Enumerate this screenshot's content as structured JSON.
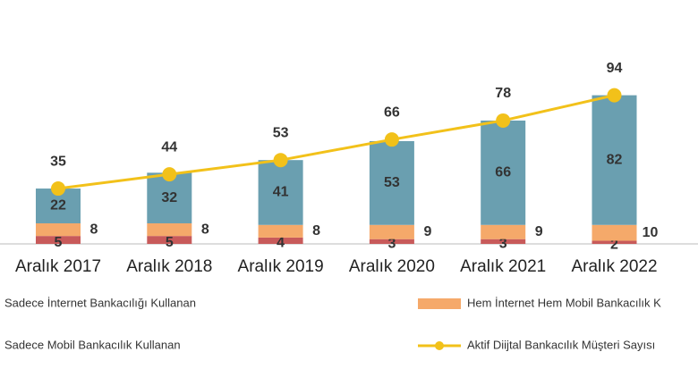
{
  "chart_data": {
    "type": "stacked-bar-line",
    "categories": [
      "Aralık 2017",
      "Aralık 2018",
      "Aralık 2019",
      "Aralık 2020",
      "Aralık 2021",
      "Aralık 2022"
    ],
    "series": [
      {
        "name": "Sadece İnternet Bankacılığı Kullanan",
        "color": "#c85a5a",
        "values": [
          5,
          5,
          4,
          3,
          3,
          2
        ]
      },
      {
        "name": "Hem İnternet Hem Mobil Bankacılık K",
        "color": "#f5a96a",
        "values": [
          8,
          8,
          8,
          9,
          9,
          10
        ]
      },
      {
        "name": "Sadece Mobil Bankacılık Kullanan",
        "color": "#6a9fb0",
        "values": [
          22,
          32,
          41,
          53,
          66,
          82
        ]
      },
      {
        "name": "Aktif Diijtal Bankacılık Müşteri Sayısı",
        "color": "#f2c11a",
        "type": "line",
        "values": [
          35,
          44,
          53,
          66,
          78,
          94
        ]
      }
    ],
    "ylim": [
      0,
      100
    ]
  }
}
